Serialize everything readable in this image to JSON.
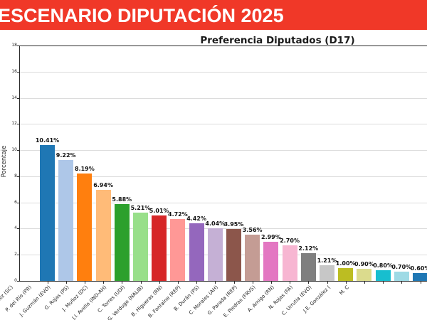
{
  "banner": {
    "title": "ESCENARIO DIPUTACIÓN 2025",
    "bg_color": "#f03828",
    "text_color": "#ffffff"
  },
  "chart_data": {
    "type": "bar",
    "title": "Preferencia Diputados (D17)",
    "xlabel": "",
    "ylabel": "Porcentaje",
    "ylim": [
      0,
      18
    ],
    "yticks": [
      0,
      2,
      4,
      6,
      8,
      10,
      12,
      14,
      16,
      18
    ],
    "grid": true,
    "legend": false,
    "categories": [
      "R. Celedón (FA)",
      "B. Moreno (REP)",
      "F. Donoso (UDI)",
      "P. Castillo (DC)",
      "B. Vásquez (SC)",
      "P. del Río (PR)",
      "J. Guzmán (EVO)",
      "G. Rojas (PS)",
      "J. Muñoz (DC)",
      "J.I. Avello (IND-AH)",
      "C. Torres (UDI)",
      "G. Verdugo (NALIB)",
      "B. Higueras (RN)",
      "B. Fontaine (REP)",
      "B. Durán (PS)",
      "C. Morales (AH)",
      "G. Parada (REP)",
      "E. Piedras (FRVS)",
      "A. Amigo (RN)",
      "N. Rojas (FA)",
      "C. Urrutia (EVO)"
    ],
    "values": [
      10.41,
      9.22,
      8.19,
      6.94,
      5.88,
      5.21,
      5.01,
      4.72,
      4.42,
      4.04,
      3.95,
      3.56,
      2.99,
      2.7,
      2.12,
      1.21,
      1.0,
      0.9,
      0.8,
      0.7,
      0.6
    ],
    "value_labels": [
      "10.41%",
      "9.22%",
      "8.19%",
      "6.94%",
      "5.88%",
      "5.21%",
      "5.01%",
      "4.72%",
      "4.42%",
      "4.04%",
      "3.95%",
      "3.56%",
      "2.99%",
      "2.70%",
      "2.12%",
      "1.21%",
      "1.00%",
      "0.90%",
      "0.80%",
      "0.70%",
      "0.60%"
    ],
    "bar_colors": [
      "#1f77b4",
      "#aec7e8",
      "#ff7f0e",
      "#ffbb78",
      "#2ca02c",
      "#98df8a",
      "#d62728",
      "#ff9896",
      "#9467bd",
      "#c5b0d5",
      "#8c564b",
      "#c49c94",
      "#e377c2",
      "#f7b6d2",
      "#7f7f7f",
      "#c7c7c7",
      "#bcbd22",
      "#dbdb8d",
      "#17becf",
      "#9edae5",
      "#1f77b4"
    ],
    "clipped_edge_labels": [
      "J.E. González (",
      "M. C"
    ]
  }
}
